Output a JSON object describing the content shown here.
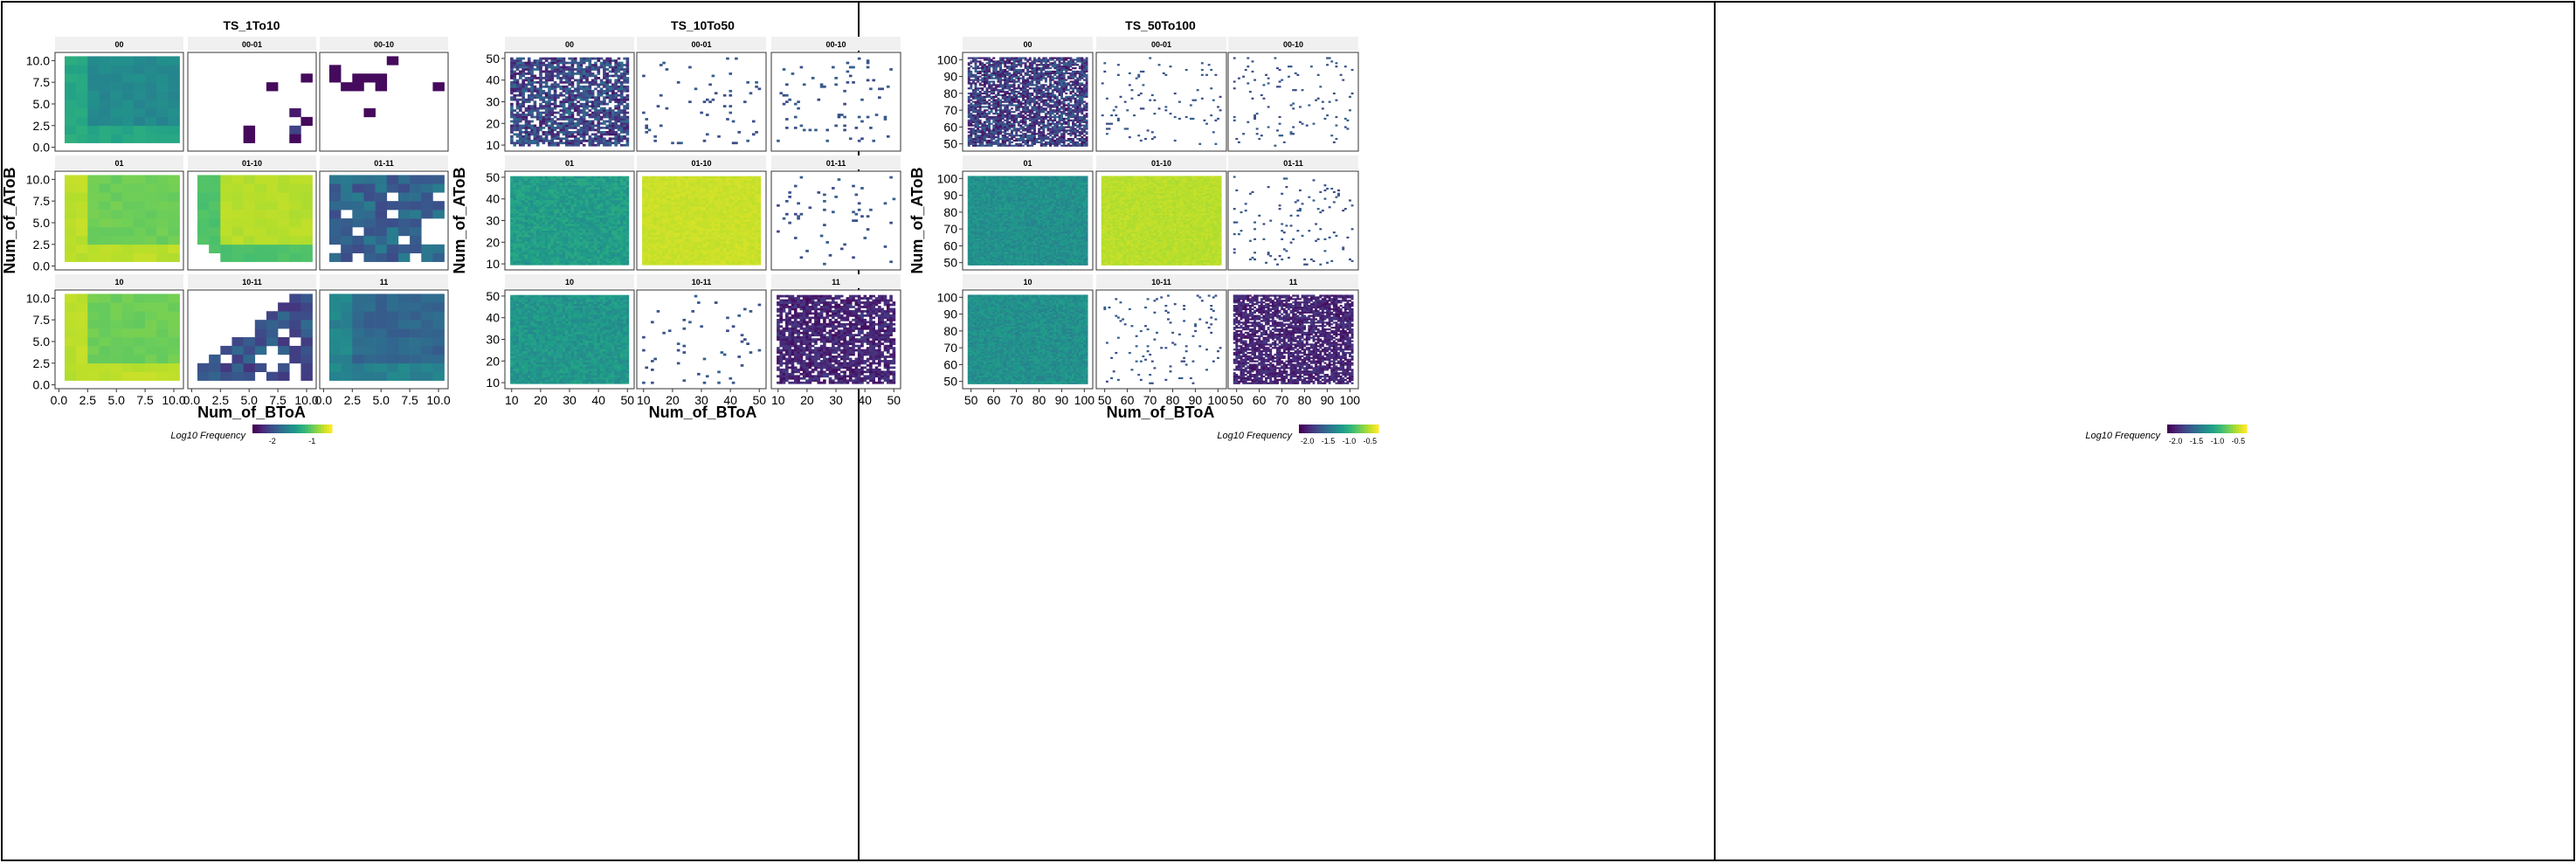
{
  "chart_data": [
    {
      "type": "heatmap",
      "title": "TS_1To10",
      "xlabel": "Num_of_BToA",
      "ylabel": "Num_of_AToB",
      "xlim": [
        0,
        10.5
      ],
      "ylim": [
        0,
        10.5
      ],
      "x_ticks": [
        "0.0",
        "2.5",
        "5.0",
        "7.5",
        "10.0"
      ],
      "y_ticks": [
        "0.0",
        "2.5",
        "5.0",
        "7.5",
        "10.0"
      ],
      "legend": {
        "title": "Log10 Frequency",
        "ticks": [
          "-2",
          "-1"
        ],
        "range": [
          -2.5,
          -0.5
        ]
      },
      "grid": false,
      "panels": [
        {
          "label": "00",
          "fill": "full",
          "mean": -1.55,
          "spread": 0.12
        },
        {
          "label": "00-01",
          "fill": "cells",
          "cells": [
            [
              10,
              8,
              -2.45
            ],
            [
              7,
              7,
              -2.45
            ],
            [
              9,
              4,
              -2.35
            ],
            [
              10,
              3,
              -2.45
            ],
            [
              9,
              2,
              -2.1
            ],
            [
              5,
              2,
              -2.45
            ],
            [
              9,
              1,
              -2.45
            ],
            [
              5,
              1,
              -2.45
            ]
          ]
        },
        {
          "label": "00-10",
          "fill": "cells",
          "cells": [
            [
              6,
              10,
              -2.45
            ],
            [
              1,
              9,
              -2.45
            ],
            [
              1,
              8,
              -2.45
            ],
            [
              3,
              8,
              -2.45
            ],
            [
              4,
              8,
              -2.45
            ],
            [
              5,
              8,
              -2.45
            ],
            [
              2,
              7,
              -2.45
            ],
            [
              3,
              7,
              -2.45
            ],
            [
              5,
              7,
              -2.45
            ],
            [
              10,
              7,
              -2.45
            ],
            [
              4,
              4,
              -2.45
            ]
          ]
        },
        {
          "label": "01",
          "fill": "full",
          "mean": -0.95,
          "spread": 0.08
        },
        {
          "label": "01-10",
          "fill": "partial",
          "mean": -0.72,
          "spread": 0.06
        },
        {
          "label": "01-11",
          "fill": "partial",
          "mean": -1.85,
          "spread": 0.2
        },
        {
          "label": "10",
          "fill": "full",
          "mean": -0.95,
          "spread": 0.08
        },
        {
          "label": "10-11",
          "fill": "partial",
          "mean": -2.0,
          "spread": 0.2
        },
        {
          "label": "11",
          "fill": "full",
          "mean": -1.85,
          "spread": 0.18
        }
      ]
    },
    {
      "type": "heatmap",
      "title": "TS_10To50",
      "xlabel": "Num_of_BToA",
      "ylabel": "Num_of_AToB",
      "xlim": [
        9,
        51
      ],
      "ylim": [
        9,
        51
      ],
      "x_ticks": [
        "10",
        "20",
        "30",
        "40",
        "50"
      ],
      "y_ticks": [
        "10",
        "20",
        "30",
        "40",
        "50"
      ],
      "legend": {
        "title": "Log10 Frequency",
        "ticks": [
          "-2.0",
          "-1.5",
          "-1.0",
          "-0.5"
        ],
        "range": [
          -2.2,
          -0.3
        ]
      },
      "grid": false,
      "panels": [
        {
          "label": "00",
          "fill": "dense",
          "mean": -1.8,
          "spread": 0.3
        },
        {
          "label": "00-01",
          "fill": "sparse",
          "mean": -1.7,
          "spread": 0.1
        },
        {
          "label": "00-10",
          "fill": "sparse",
          "mean": -1.7,
          "spread": 0.1
        },
        {
          "label": "01",
          "fill": "full",
          "mean": -1.15,
          "spread": 0.12
        },
        {
          "label": "01-10",
          "fill": "full",
          "mean": -0.45,
          "spread": 0.04
        },
        {
          "label": "01-11",
          "fill": "sparse",
          "mean": -1.7,
          "spread": 0.1
        },
        {
          "label": "10",
          "fill": "full",
          "mean": -1.2,
          "spread": 0.12
        },
        {
          "label": "10-11",
          "fill": "sparse",
          "mean": -1.7,
          "spread": 0.1
        },
        {
          "label": "11",
          "fill": "dense",
          "mean": -2.0,
          "spread": 0.15
        }
      ]
    },
    {
      "type": "heatmap",
      "title": "TS_50To100",
      "xlabel": "Num_of_BToA",
      "ylabel": "Num_of_AToB",
      "xlim": [
        48,
        102
      ],
      "ylim": [
        48,
        102
      ],
      "x_ticks": [
        "50",
        "60",
        "70",
        "80",
        "90",
        "100"
      ],
      "y_ticks": [
        "50",
        "60",
        "70",
        "80",
        "90",
        "100"
      ],
      "legend": {
        "title": "Log10 Frequency",
        "ticks": [
          "-2.0",
          "-1.5",
          "-1.0",
          "-0.5"
        ],
        "range": [
          -2.2,
          -0.3
        ]
      },
      "grid": false,
      "panels": [
        {
          "label": "00",
          "fill": "dense",
          "mean": -1.85,
          "spread": 0.3
        },
        {
          "label": "00-01",
          "fill": "sparse",
          "mean": -1.7,
          "spread": 0.1
        },
        {
          "label": "00-10",
          "fill": "sparse",
          "mean": -1.7,
          "spread": 0.1
        },
        {
          "label": "01",
          "fill": "full",
          "mean": -1.25,
          "spread": 0.12
        },
        {
          "label": "01-10",
          "fill": "full",
          "mean": -0.5,
          "spread": 0.05
        },
        {
          "label": "01-11",
          "fill": "sparse",
          "mean": -1.7,
          "spread": 0.1
        },
        {
          "label": "10",
          "fill": "full",
          "mean": -1.25,
          "spread": 0.12
        },
        {
          "label": "10-11",
          "fill": "sparse",
          "mean": -1.7,
          "spread": 0.1
        },
        {
          "label": "11",
          "fill": "dense",
          "mean": -2.0,
          "spread": 0.15
        }
      ]
    }
  ],
  "colors": {
    "strip_background": "#f0f0f0",
    "panel_border": "#333333",
    "frame_border": "#000000",
    "palette": "viridis"
  }
}
